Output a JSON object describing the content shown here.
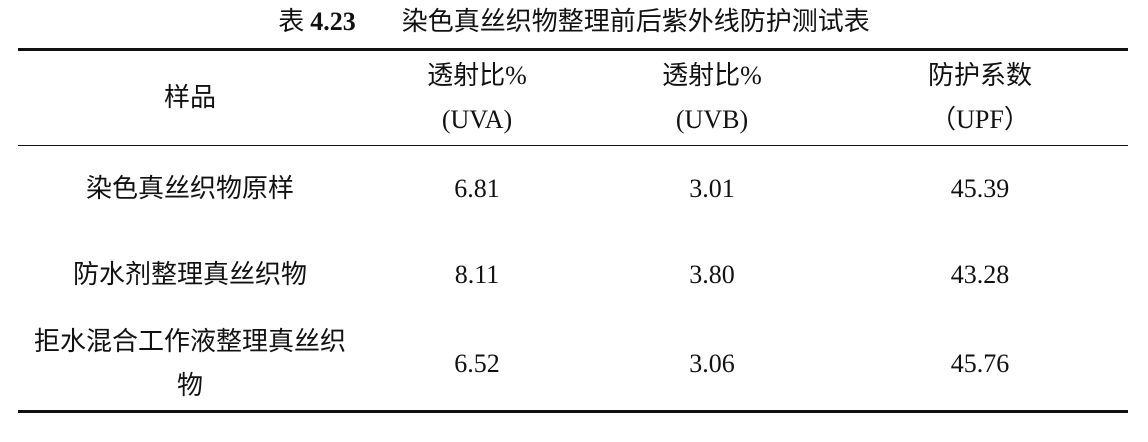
{
  "caption": {
    "prefix": "表",
    "number": "4.23",
    "title": "染色真丝织物整理前后紫外线防护测试表"
  },
  "table": {
    "header": [
      [
        "样品"
      ],
      [
        "透射比%",
        "(UVA)"
      ],
      [
        "透射比%",
        "(UVB)"
      ],
      [
        "防护系数",
        "（UPF）"
      ]
    ],
    "rows": [
      [
        "染色真丝织物原样",
        "6.81",
        "3.01",
        "45.39"
      ],
      [
        "防水剂整理真丝织物",
        "8.11",
        "3.80",
        "43.28"
      ],
      [
        "拒水混合工作液整理真丝织物",
        "6.52",
        "3.06",
        "45.76"
      ]
    ]
  }
}
